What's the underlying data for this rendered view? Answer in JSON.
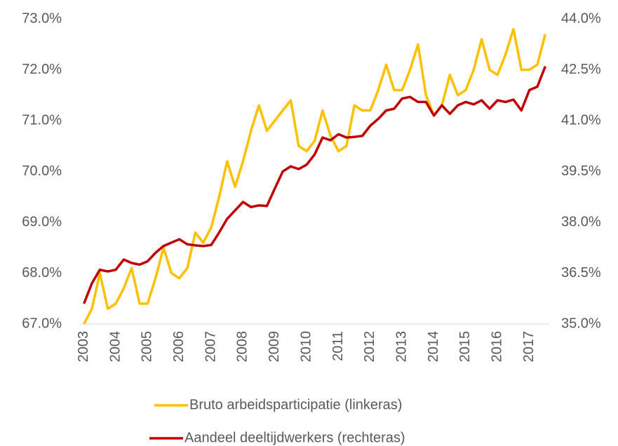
{
  "chart_data": {
    "type": "line",
    "categories": [
      "2003",
      null,
      null,
      null,
      "2004",
      null,
      null,
      null,
      "2005",
      null,
      null,
      null,
      "2006",
      null,
      null,
      null,
      "2007",
      null,
      null,
      null,
      "2008",
      null,
      null,
      null,
      "2009",
      null,
      null,
      null,
      "2010",
      null,
      null,
      null,
      "2011",
      null,
      null,
      null,
      "2012",
      null,
      null,
      null,
      "2013",
      null,
      null,
      null,
      "2014",
      null,
      null,
      null,
      "2015",
      null,
      null,
      null,
      "2016",
      null,
      null,
      null,
      "2017",
      null,
      null
    ],
    "series": [
      {
        "name": "Bruto arbeidsparticipatie (linkeras)",
        "color": "#FFC000",
        "axis": "y",
        "values": [
          67.0,
          67.3,
          68.0,
          67.3,
          67.4,
          67.7,
          68.1,
          67.4,
          67.4,
          67.9,
          68.5,
          68.0,
          67.9,
          68.1,
          68.8,
          68.6,
          68.9,
          69.5,
          70.2,
          69.7,
          70.2,
          70.8,
          71.3,
          70.8,
          71.0,
          71.2,
          71.4,
          70.5,
          70.4,
          70.6,
          71.2,
          70.7,
          70.4,
          70.5,
          71.3,
          71.2,
          71.2,
          71.6,
          72.1,
          71.6,
          71.6,
          72.0,
          72.5,
          71.5,
          71.1,
          71.3,
          71.9,
          71.5,
          71.6,
          72.0,
          72.6,
          72.0,
          71.9,
          72.3,
          72.8,
          72.0,
          72.0,
          72.1,
          72.7
        ]
      },
      {
        "name": "Aandeel deeltijdwerkers (rechteras)",
        "color": "#C00000",
        "axis": "y2",
        "values": [
          35.6,
          36.2,
          36.6,
          36.55,
          36.6,
          36.9,
          36.8,
          36.75,
          36.85,
          37.1,
          37.3,
          37.4,
          37.5,
          37.35,
          37.32,
          37.3,
          37.33,
          37.7,
          38.1,
          38.35,
          38.6,
          38.45,
          38.5,
          38.48,
          39.0,
          39.5,
          39.65,
          39.57,
          39.7,
          40.0,
          40.5,
          40.42,
          40.6,
          40.5,
          40.52,
          40.55,
          40.85,
          41.05,
          41.3,
          41.35,
          41.65,
          41.7,
          41.55,
          41.55,
          41.15,
          41.45,
          41.2,
          41.45,
          41.55,
          41.48,
          41.6,
          41.35,
          41.6,
          41.55,
          41.62,
          41.3,
          41.9,
          42.0,
          42.6
        ]
      }
    ],
    "ylim": [
      67,
      73
    ],
    "yticks": [
      {
        "value": 67,
        "label": "67.0%"
      },
      {
        "value": 68,
        "label": "68.0%"
      },
      {
        "value": 69,
        "label": "69.0%"
      },
      {
        "value": 70,
        "label": "70.0%"
      },
      {
        "value": 71,
        "label": "71.0%"
      },
      {
        "value": 72,
        "label": "72.0%"
      },
      {
        "value": 73,
        "label": "73.0%"
      }
    ],
    "y2lim": [
      35,
      44
    ],
    "y2ticks": [
      {
        "value": 35,
        "label": "35.0%"
      },
      {
        "value": 36.5,
        "label": "36.5%"
      },
      {
        "value": 38,
        "label": "38.0%"
      },
      {
        "value": 39.5,
        "label": "39.5%"
      },
      {
        "value": 41,
        "label": "41.0%"
      },
      {
        "value": 42.5,
        "label": "42.5%"
      },
      {
        "value": 44,
        "label": "44.0%"
      }
    ],
    "grid": false,
    "legend": "bottom"
  }
}
